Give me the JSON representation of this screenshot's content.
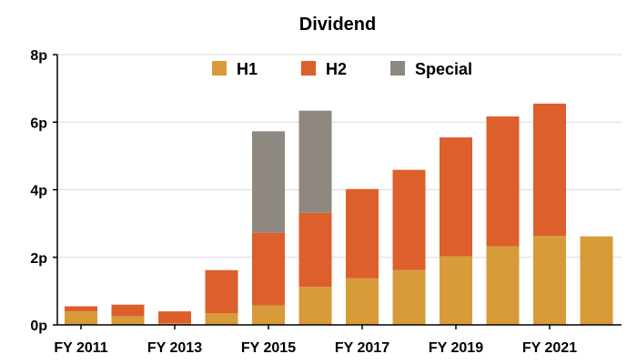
{
  "chart_data": {
    "type": "bar",
    "stacked": true,
    "title": "Dividend",
    "xlabel": "",
    "ylabel": "",
    "ylim": [
      0,
      8
    ],
    "y_ticks": [
      "0p",
      "2p",
      "4p",
      "6p",
      "8p"
    ],
    "x_tick_labels": [
      "FY 2011",
      "FY 2013",
      "FY 2015",
      "FY 2017",
      "FY 2019",
      "FY 2021"
    ],
    "categories": [
      "FY 2011",
      "FY 2012",
      "FY 2013",
      "FY 2014",
      "FY 2015",
      "FY 2016",
      "FY 2017",
      "FY 2018",
      "FY 2019",
      "FY 2020",
      "FY 2021",
      "FY 2022"
    ],
    "series": [
      {
        "name": "H1",
        "color": "#d89b3a",
        "values": [
          0.4,
          0.25,
          0.05,
          0.35,
          0.58,
          1.13,
          1.38,
          1.62,
          2.03,
          2.33,
          2.63,
          2.62
        ]
      },
      {
        "name": "H2",
        "color": "#dd5f2c",
        "values": [
          0.15,
          0.35,
          0.35,
          1.27,
          2.15,
          2.19,
          2.64,
          2.97,
          3.52,
          3.84,
          3.92,
          0
        ]
      },
      {
        "name": "Special",
        "color": "#8f8880",
        "values": [
          0,
          0,
          0,
          0,
          3.0,
          3.02,
          0,
          0,
          0,
          0,
          0,
          0
        ]
      }
    ],
    "grid": true,
    "legend_position": "top"
  }
}
